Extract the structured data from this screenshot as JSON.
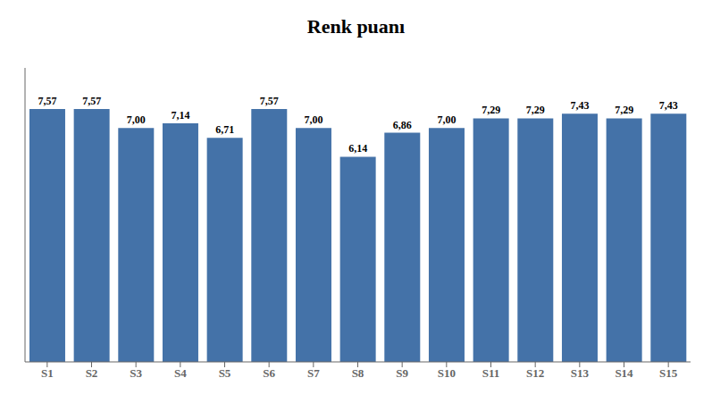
{
  "chart_data": {
    "type": "bar",
    "title": "Renk puanı",
    "categories": [
      "S1",
      "S2",
      "S3",
      "S4",
      "S5",
      "S6",
      "S7",
      "S8",
      "S9",
      "S10",
      "S11",
      "S12",
      "S13",
      "S14",
      "S15"
    ],
    "values": [
      7.57,
      7.57,
      7.0,
      7.14,
      6.71,
      7.57,
      7.0,
      6.14,
      6.86,
      7.0,
      7.29,
      7.29,
      7.43,
      7.29,
      7.43
    ],
    "value_labels": [
      "7,57",
      "7,57",
      "7,00",
      "7,14",
      "6,71",
      "7,57",
      "7,00",
      "6,14",
      "6,86",
      "7,00",
      "7,29",
      "7,29",
      "7,43",
      "7,29",
      "7,43"
    ],
    "color": "#4472a8",
    "ylim": [
      0,
      8.8
    ],
    "grid": false,
    "data_labels": true,
    "tick_labels": "x"
  }
}
